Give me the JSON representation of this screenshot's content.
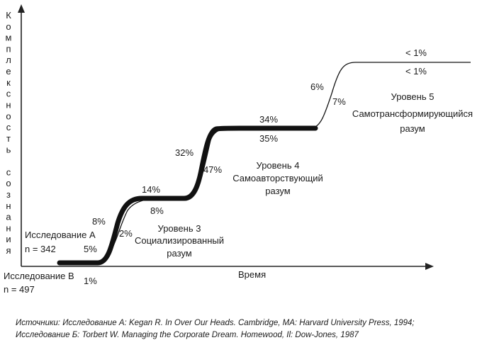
{
  "chart_data": {
    "type": "line",
    "title": "",
    "ylabel": "Комплексность сознания",
    "xlabel": "Время",
    "legend": "none",
    "grid": false,
    "stages": [
      {
        "name": "",
        "label_lines": [],
        "study_a_pct": "5%",
        "study_b_pct": "1%"
      },
      {
        "name": "",
        "label_lines": [
          "Уровень 3",
          "Социализированный",
          "разум"
        ],
        "study_a_pct": "8%",
        "study_b_pct": "2%"
      },
      {
        "name": "",
        "label_lines": [],
        "study_a_pct": "14%",
        "study_b_pct": "8%"
      },
      {
        "name": "",
        "label_lines": [
          "Уровень 4",
          "Самоавторствующий",
          "разум"
        ],
        "study_a_pct": "32%",
        "study_b_pct": "47%"
      },
      {
        "name": "",
        "label_lines": [],
        "study_a_pct": "34%",
        "study_b_pct": "35%"
      },
      {
        "name": "",
        "label_lines": [
          "Уровень 5",
          "Самотрансформирующийся",
          "разум"
        ],
        "study_a_pct": "6%",
        "study_b_pct": "7%"
      },
      {
        "name": "",
        "label_lines": [],
        "study_a_pct": "< 1%",
        "study_b_pct": "< 1%"
      }
    ],
    "studies": [
      {
        "name": "Исследование А",
        "n": "n = 342"
      },
      {
        "name": "Исследование В",
        "n": "n = 497"
      }
    ]
  },
  "sources": {
    "line1": "Источники: Исследование А: Kegan R. In Over Our Heads. Cambridge, MA: Harvard University Press, 1994;",
    "line2": "Исследование Б: Torbert W. Managing the Corporate Dream. Homewood, Il: Dow-Jones, 1987"
  },
  "colors": {
    "curve": "#111111",
    "axis": "#222222",
    "text": "#1a1a1a"
  }
}
